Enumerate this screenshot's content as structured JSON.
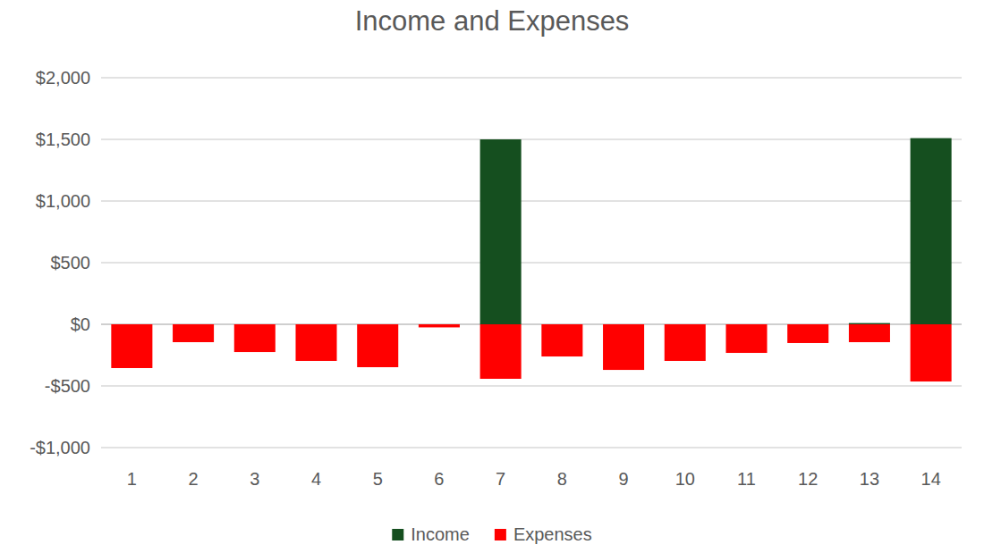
{
  "chart_data": {
    "type": "bar",
    "title": "Income and Expenses",
    "categories": [
      "1",
      "2",
      "3",
      "4",
      "5",
      "6",
      "7",
      "8",
      "9",
      "10",
      "11",
      "12",
      "13",
      "14"
    ],
    "series": [
      {
        "name": "Income",
        "color": "#154f1f",
        "values": [
          0,
          0,
          0,
          0,
          0,
          0,
          1500,
          0,
          0,
          0,
          0,
          0,
          10,
          1510
        ]
      },
      {
        "name": "Expenses",
        "color": "#ff0000",
        "values": [
          -355,
          -145,
          -225,
          -297,
          -348,
          -25,
          -442,
          -261,
          -370,
          -297,
          -232,
          -152,
          -145,
          -464
        ]
      }
    ],
    "ylim": [
      -1000,
      2000
    ],
    "yticks": [
      {
        "value": -1000,
        "label": "-$1,000"
      },
      {
        "value": -500,
        "label": "-$500"
      },
      {
        "value": 0,
        "label": "$0"
      },
      {
        "value": 500,
        "label": "$500"
      },
      {
        "value": 1000,
        "label": "$1,000"
      },
      {
        "value": 1500,
        "label": "$1,500"
      },
      {
        "value": 2000,
        "label": "$2,000"
      }
    ],
    "grid": true,
    "legend": "bottom"
  }
}
